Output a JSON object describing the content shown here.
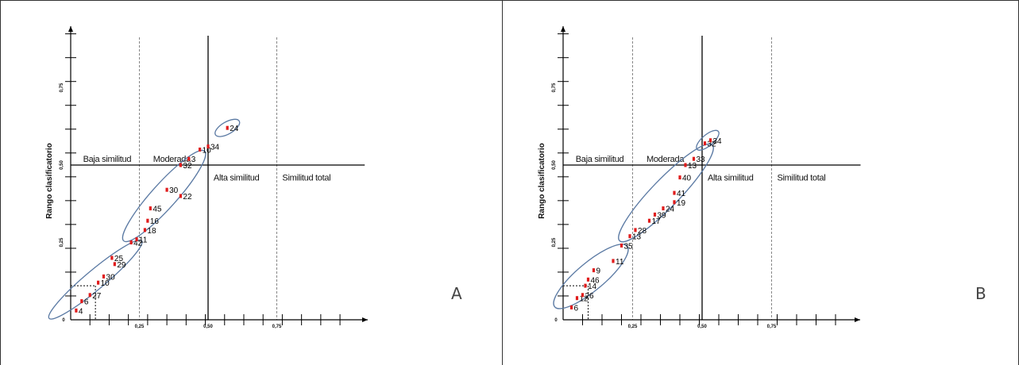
{
  "chart_data": [
    {
      "type": "scatter",
      "panel_label": "A",
      "ylabel": "Rango clasificatorio",
      "xlabel": "",
      "xlim": [
        0,
        1
      ],
      "ylim": [
        0,
        1
      ],
      "x_ticks": [
        "0,25",
        "0,50",
        "0,75"
      ],
      "y_ticks": [
        "0,25",
        "0,50",
        "0,75"
      ],
      "origin_label": "0",
      "zones": [
        "Baja similitud",
        "Moderada",
        "Alta similitud",
        "Similitud total"
      ],
      "grid": false,
      "points": [
        {
          "label": "4",
          "x": 0.02,
          "y": 0.03
        },
        {
          "label": "6",
          "x": 0.04,
          "y": 0.06
        },
        {
          "label": "27",
          "x": 0.07,
          "y": 0.08
        },
        {
          "label": "10",
          "x": 0.1,
          "y": 0.12
        },
        {
          "label": "30",
          "x": 0.12,
          "y": 0.14
        },
        {
          "label": "29",
          "x": 0.16,
          "y": 0.18
        },
        {
          "label": "25",
          "x": 0.15,
          "y": 0.2
        },
        {
          "label": "42",
          "x": 0.22,
          "y": 0.25
        },
        {
          "label": "11",
          "x": 0.24,
          "y": 0.26
        },
        {
          "label": "18",
          "x": 0.27,
          "y": 0.29
        },
        {
          "label": "16",
          "x": 0.28,
          "y": 0.32
        },
        {
          "label": "45",
          "x": 0.29,
          "y": 0.36
        },
        {
          "label": "22",
          "x": 0.4,
          "y": 0.4
        },
        {
          "label": "30",
          "x": 0.35,
          "y": 0.42
        },
        {
          "label": "32",
          "x": 0.4,
          "y": 0.5
        },
        {
          "label": "3",
          "x": 0.43,
          "y": 0.52
        },
        {
          "label": "10",
          "x": 0.47,
          "y": 0.55
        },
        {
          "label": "34",
          "x": 0.5,
          "y": 0.56
        },
        {
          "label": "24",
          "x": 0.57,
          "y": 0.62
        }
      ]
    },
    {
      "type": "scatter",
      "panel_label": "B",
      "ylabel": "Rango clasificatorio",
      "xlabel": "",
      "xlim": [
        0,
        1
      ],
      "ylim": [
        0,
        1
      ],
      "x_ticks": [
        "0,25",
        "0,50",
        "0,75"
      ],
      "y_ticks": [
        "0,25",
        "0,50",
        "0,75"
      ],
      "origin_label": "0",
      "zones": [
        "Baja similitud",
        "Moderada",
        "Alta similitud",
        "Similitud total"
      ],
      "grid": false,
      "points": [
        {
          "label": "6",
          "x": 0.03,
          "y": 0.04
        },
        {
          "label": "12",
          "x": 0.05,
          "y": 0.07
        },
        {
          "label": "26",
          "x": 0.07,
          "y": 0.08
        },
        {
          "label": "14",
          "x": 0.08,
          "y": 0.11
        },
        {
          "label": "46",
          "x": 0.09,
          "y": 0.13
        },
        {
          "label": "9",
          "x": 0.11,
          "y": 0.16
        },
        {
          "label": "11",
          "x": 0.18,
          "y": 0.19
        },
        {
          "label": "35",
          "x": 0.21,
          "y": 0.24
        },
        {
          "label": "13",
          "x": 0.24,
          "y": 0.27
        },
        {
          "label": "28",
          "x": 0.26,
          "y": 0.29
        },
        {
          "label": "17",
          "x": 0.31,
          "y": 0.32
        },
        {
          "label": "39",
          "x": 0.33,
          "y": 0.34
        },
        {
          "label": "24",
          "x": 0.36,
          "y": 0.36
        },
        {
          "label": "19",
          "x": 0.4,
          "y": 0.38
        },
        {
          "label": "41",
          "x": 0.4,
          "y": 0.41
        },
        {
          "label": "40",
          "x": 0.42,
          "y": 0.46
        },
        {
          "label": "13",
          "x": 0.44,
          "y": 0.5
        },
        {
          "label": "33",
          "x": 0.47,
          "y": 0.52
        },
        {
          "label": "32",
          "x": 0.51,
          "y": 0.57
        },
        {
          "label": "34",
          "x": 0.53,
          "y": 0.58
        }
      ]
    }
  ]
}
